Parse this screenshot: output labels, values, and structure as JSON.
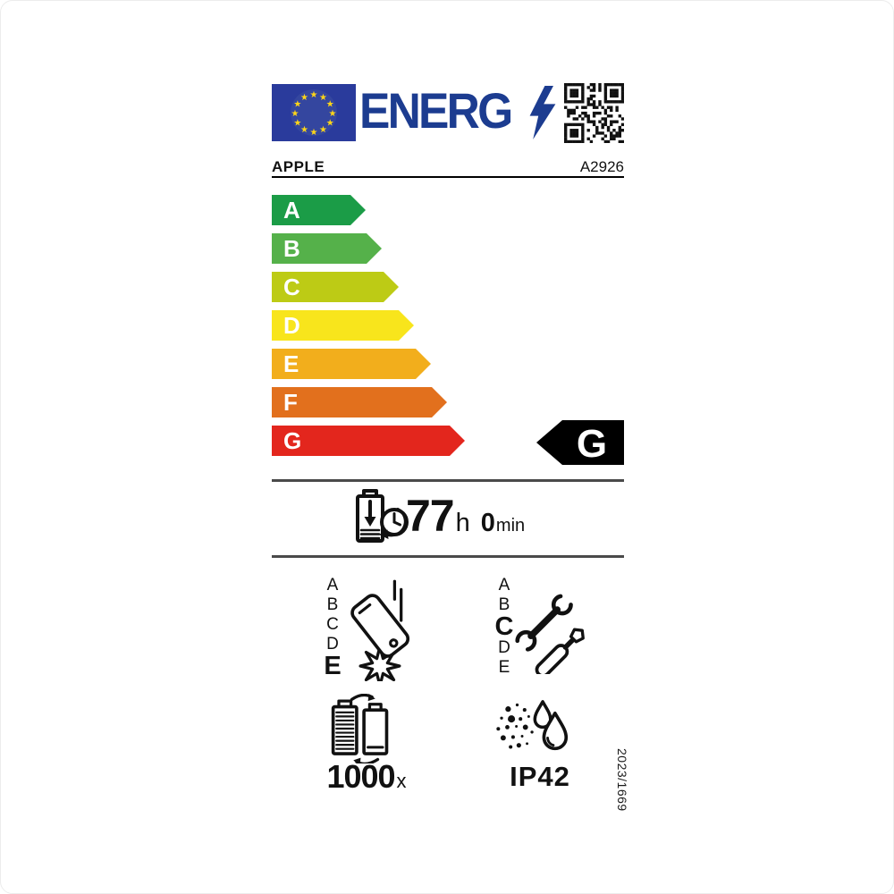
{
  "header": {
    "logo_text": "ENERG",
    "logo_color": "#1c3c90",
    "flag_color": "#2a3b9c",
    "star_color": "#ffd617",
    "icons": [
      "eu-flag-icon",
      "lightning-bolt-icon",
      "qr-code-icon"
    ]
  },
  "supplier": {
    "brand": "APPLE",
    "model": "A2926"
  },
  "scale": {
    "rows": [
      {
        "letter": "A",
        "color": "#1b9c47"
      },
      {
        "letter": "B",
        "color": "#55b14a"
      },
      {
        "letter": "C",
        "color": "#bdcb15"
      },
      {
        "letter": "D",
        "color": "#f8e51c"
      },
      {
        "letter": "E",
        "color": "#f2ae1c"
      },
      {
        "letter": "F",
        "color": "#e2701d"
      },
      {
        "letter": "G",
        "color": "#e3261d"
      }
    ],
    "rated_class": {
      "letter": "G",
      "background": "#000000"
    }
  },
  "battery_life": {
    "hours": "77",
    "hours_unit": "h",
    "minutes": "0",
    "minutes_unit": "min"
  },
  "free_fall": {
    "scale": [
      "A",
      "B",
      "C",
      "D",
      "E"
    ],
    "selected": "E",
    "icon": "falling-phone-impact-icon"
  },
  "repairability": {
    "scale": [
      "A",
      "B",
      "C",
      "D",
      "E"
    ],
    "selected": "C",
    "icon": "wrench-screwdriver-icon"
  },
  "battery_endurance": {
    "value": "1000",
    "unit": "x",
    "icon": "battery-recharge-cycle-icon"
  },
  "ingress_protection": {
    "rating": "IP42",
    "icon": "dust-water-drops-icon"
  },
  "regulation": "2023/1669"
}
